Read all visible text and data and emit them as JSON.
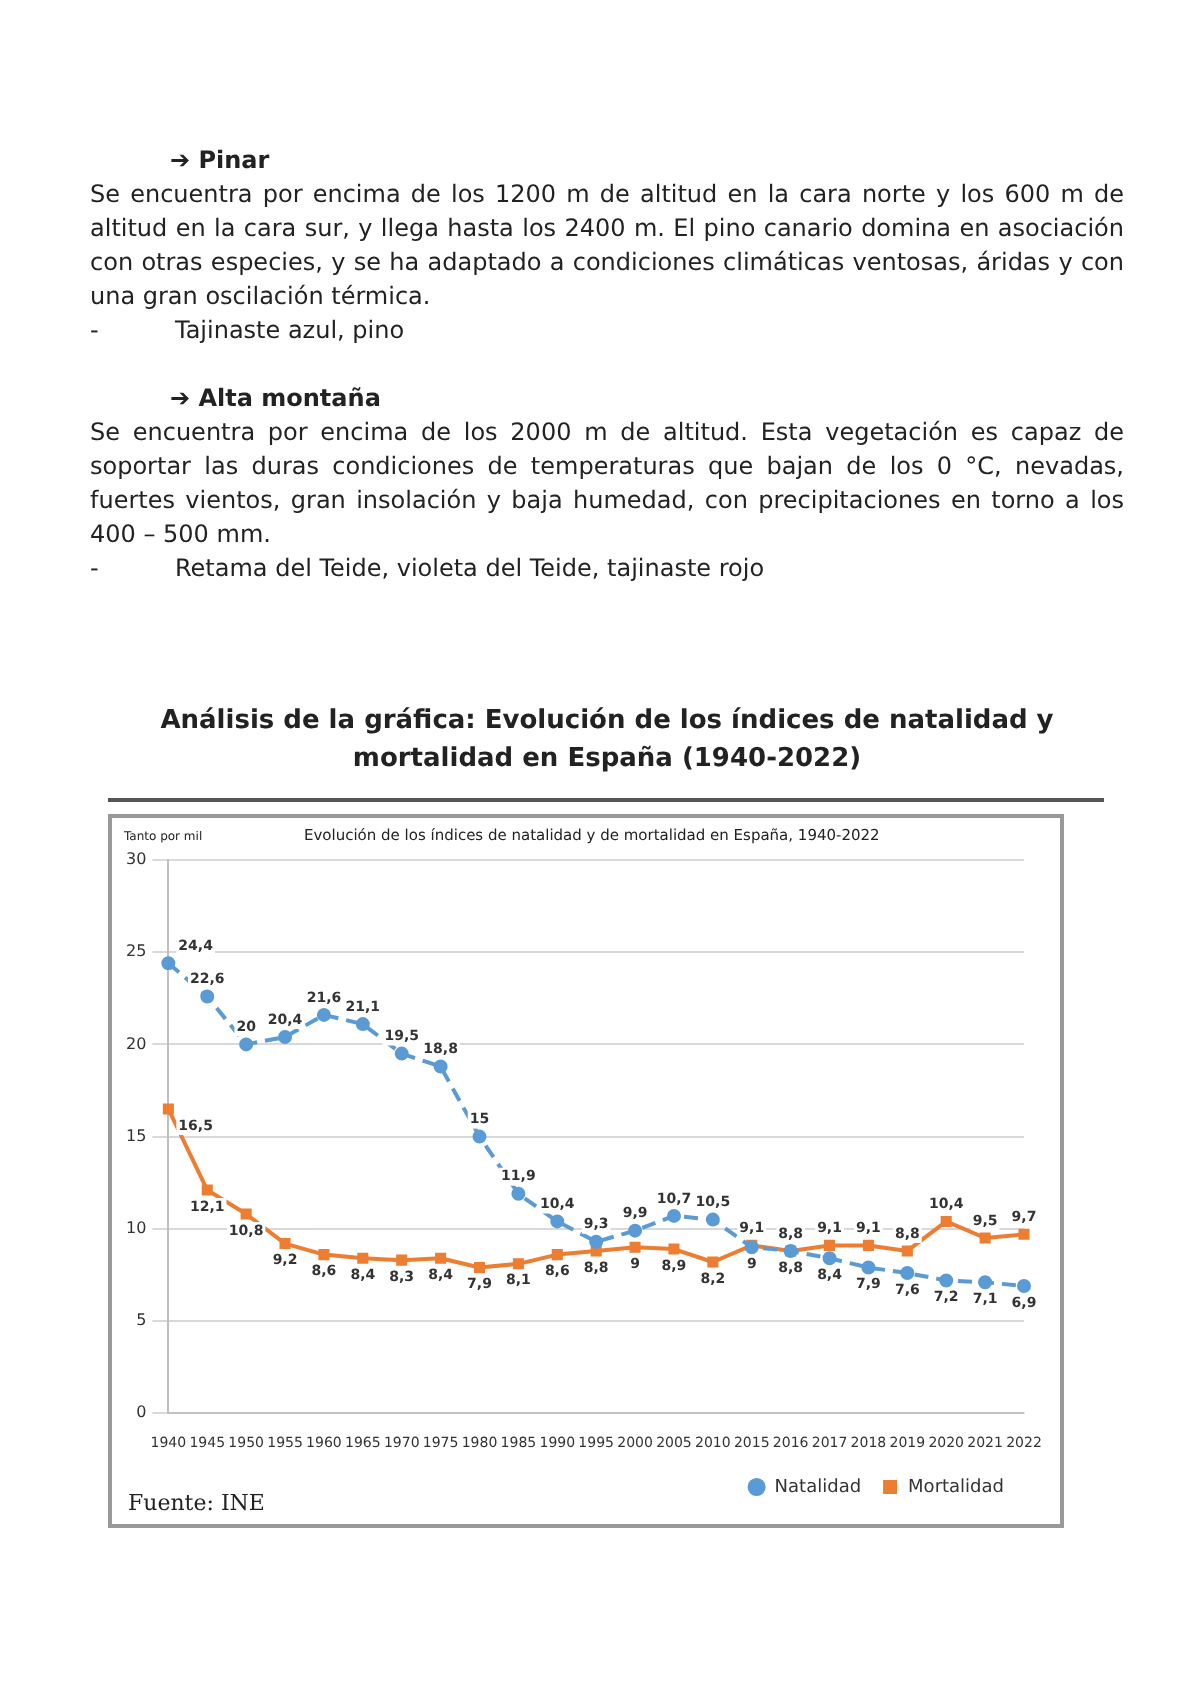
{
  "chart_data": {
    "type": "line",
    "title": "Análisis de la gráfica: Evolución de los índices de natalidad y mortalidad en España (1940-2022)",
    "subtitle": "Evolución de los índices de natalidad y de mortalidad en España, 1940-2022",
    "ylabel": "Tanto por mil",
    "annotations": [
      "➔ Pinar",
      "Se encuentra por encima de los 1200 m de altitud en la cara norte y los 600 m de altitud en la cara sur, y llega hasta los 2400 m. El pino canario domina en asociación con otras especies, y se ha adaptado a condiciones climáticas ventosas, áridas y con una gran oscilación térmica.",
      "-          Tajinaste azul, pino",
      "➔ Alta montaña",
      "Se encuentra por encima de los 2000 m de altitud. Esta vegetación es capaz de soportar las duras condiciones de temperaturas que bajan de los 0 °C, nevadas, fuertes vientos, gran insolación y baja humedad, con precipitaciones en torno a los 400 – 500 mm.",
      "-          Retama del Teide, violeta del Teide, tajinaste rojo",
      "Fuente: INE"
    ],
    "categories": [
      "1940",
      "1945",
      "1950",
      "1955",
      "1960",
      "1965",
      "1970",
      "1975",
      "1980",
      "1985",
      "1990",
      "1995",
      "2000",
      "2005",
      "2010",
      "2015",
      "2016",
      "2017",
      "2018",
      "2019",
      "2020",
      "2021",
      "2022"
    ],
    "series": [
      {
        "name": "Natalidad",
        "color": "#5b9bd5",
        "line_style": "dashed",
        "marker": "circle",
        "values": [
          24.4,
          22.6,
          20,
          20.4,
          21.6,
          21.1,
          19.5,
          18.8,
          15,
          11.9,
          10.4,
          9.3,
          9.9,
          10.7,
          10.5,
          9,
          8.8,
          8.4,
          7.9,
          7.6,
          7.2,
          7.1,
          6.9
        ],
        "value_labels": [
          "24,4",
          "22,6",
          "20",
          "20,4",
          "21,6",
          "21,1",
          "19,5",
          "18,8",
          "15",
          "11,9",
          "10,4",
          "9,3",
          "9,9",
          "10,7",
          "10,5",
          "9",
          "8,8",
          "8,4",
          "7,9",
          "7,6",
          "7,2",
          "7,1",
          "6,9"
        ]
      },
      {
        "name": "Mortalidad",
        "color": "#ed7d31",
        "line_style": "solid",
        "marker": "square",
        "values": [
          16.5,
          12.1,
          10.8,
          9.2,
          8.6,
          8.4,
          8.3,
          8.4,
          7.9,
          8.1,
          8.6,
          8.8,
          9,
          8.9,
          8.2,
          9.1,
          8.8,
          9.1,
          9.1,
          8.8,
          10.4,
          9.5,
          9.7
        ],
        "value_labels": [
          "16,5",
          "12,1",
          "10,8",
          "9,2",
          "8,6",
          "8,4",
          "8,3",
          "8,4",
          "7,9",
          "8,1",
          "8,6",
          "8,8",
          "9",
          "8,9",
          "8,2",
          "9,1",
          "8,8",
          "9,1",
          "9,1",
          "8,8",
          "10,4",
          "9,5",
          "9,7"
        ]
      }
    ],
    "ylim": [
      0,
      30
    ],
    "yticks": [
      0,
      5,
      10,
      15,
      20,
      25,
      30
    ],
    "grid": "y",
    "legend": "bottom right"
  }
}
